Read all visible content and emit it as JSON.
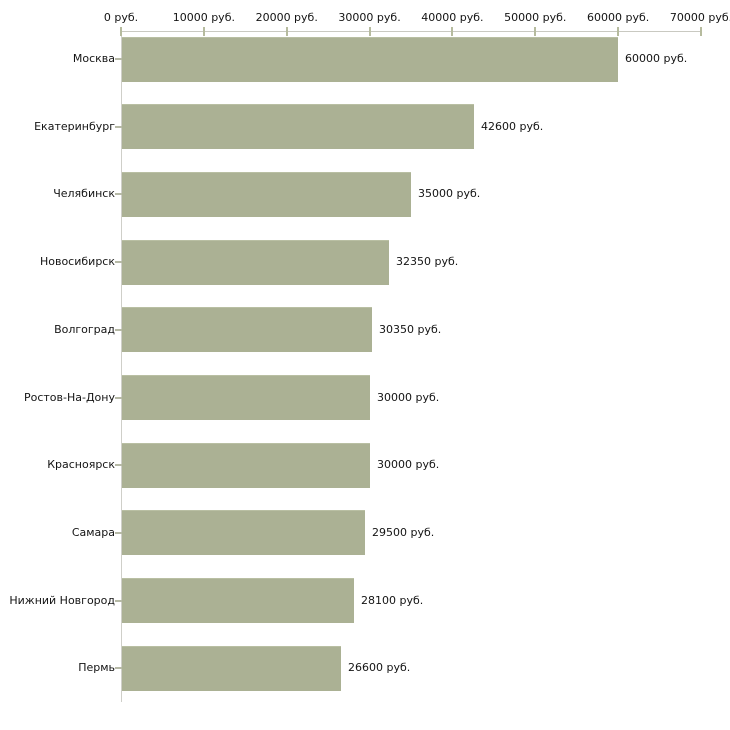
{
  "chart_data": {
    "type": "bar",
    "orientation": "horizontal",
    "title": "",
    "unit": "руб.",
    "categories": [
      "Москва",
      "Екатеринбург",
      "Челябинск",
      "Новосибирск",
      "Волгоград",
      "Ростов-На-Дону",
      "Красноярск",
      "Самара",
      "Нижний Новгород",
      "Пермь"
    ],
    "values": [
      60000,
      42600,
      35000,
      32350,
      30350,
      30000,
      30000,
      29500,
      28100,
      26600
    ],
    "bar_labels": [
      "60000 руб.",
      "42600 руб.",
      "35000 руб.",
      "32350 руб.",
      "30350 руб.",
      "30000 руб.",
      "30000 руб.",
      "29500 руб.",
      "28100 руб.",
      "26600 руб."
    ],
    "x_ticks": [
      0,
      10000,
      20000,
      30000,
      40000,
      50000,
      60000,
      70000
    ],
    "x_tick_labels": [
      "0 руб.",
      "10000 руб.",
      "20000 руб.",
      "30000 руб.",
      "40000 руб.",
      "50000 руб.",
      "60000 руб.",
      "70000 руб."
    ],
    "xlim": [
      0,
      70000
    ],
    "axis_position": "top",
    "grid": false,
    "legend": false,
    "colors": {
      "bar": "#abb194",
      "x_axis_line": "#c9c9c1",
      "y_axis_line": "#cfcfc9",
      "tick": "#b6bb9e",
      "text": "#141414",
      "background": "#ffffff"
    }
  }
}
